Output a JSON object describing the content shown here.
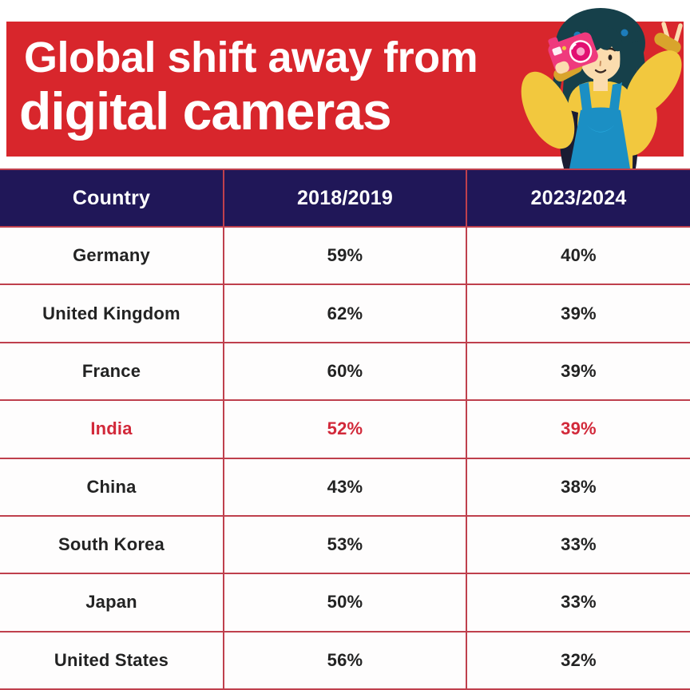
{
  "title": {
    "line1": "Global shift away from",
    "line2": "digital cameras"
  },
  "table": {
    "columns": [
      "Country",
      "2018/2019",
      "2023/2024"
    ],
    "rows": [
      {
        "country": "Germany",
        "y2018": "59%",
        "y2023": "40%",
        "highlight": false
      },
      {
        "country": "United Kingdom",
        "y2018": "62%",
        "y2023": "39%",
        "highlight": false
      },
      {
        "country": "France",
        "y2018": "60%",
        "y2023": "39%",
        "highlight": false
      },
      {
        "country": "India",
        "y2018": "52%",
        "y2023": "39%",
        "highlight": true
      },
      {
        "country": "China",
        "y2018": "43%",
        "y2023": "38%",
        "highlight": false
      },
      {
        "country": "South Korea",
        "y2018": "53%",
        "y2023": "33%",
        "highlight": false
      },
      {
        "country": "Japan",
        "y2018": "50%",
        "y2023": "33%",
        "highlight": false
      },
      {
        "country": "United States",
        "y2018": "56%",
        "y2023": "32%",
        "highlight": false
      }
    ]
  },
  "chart_data": {
    "type": "table",
    "title": "Global shift away from digital cameras",
    "columns": [
      "Country",
      "2018/2019",
      "2023/2024"
    ],
    "categories": [
      "Germany",
      "United Kingdom",
      "France",
      "India",
      "China",
      "South Korea",
      "Japan",
      "United States"
    ],
    "series": [
      {
        "name": "2018/2019",
        "values": [
          59,
          62,
          60,
          52,
          43,
          53,
          50,
          56
        ]
      },
      {
        "name": "2023/2024",
        "values": [
          40,
          39,
          39,
          39,
          38,
          33,
          33,
          32
        ]
      }
    ],
    "unit": "%",
    "highlighted_row": "India"
  },
  "colors": {
    "banner_red": "#d8262c",
    "header_navy": "#201758",
    "border_red": "#bf404d",
    "india_highlight_red": "#d2293a",
    "cell_text": "#232323",
    "header_text": "#ffffff",
    "background": "#ffffff"
  },
  "illustration": {
    "name": "woman-with-instant-camera",
    "palette": {
      "hair": "#16404a",
      "skin": "#fbdcae",
      "sweater": "#f2c83e",
      "cuff": "#d9a42c",
      "overalls": "#1b8fc4",
      "pocket": "#2ab0e5",
      "camera_pink": "#ef3a7d",
      "camera_ring": "#e20f72",
      "camera_ring_center": "#f9a6c8",
      "hair_clip": "#1d7cba",
      "shadow": "#1a1c33"
    }
  }
}
